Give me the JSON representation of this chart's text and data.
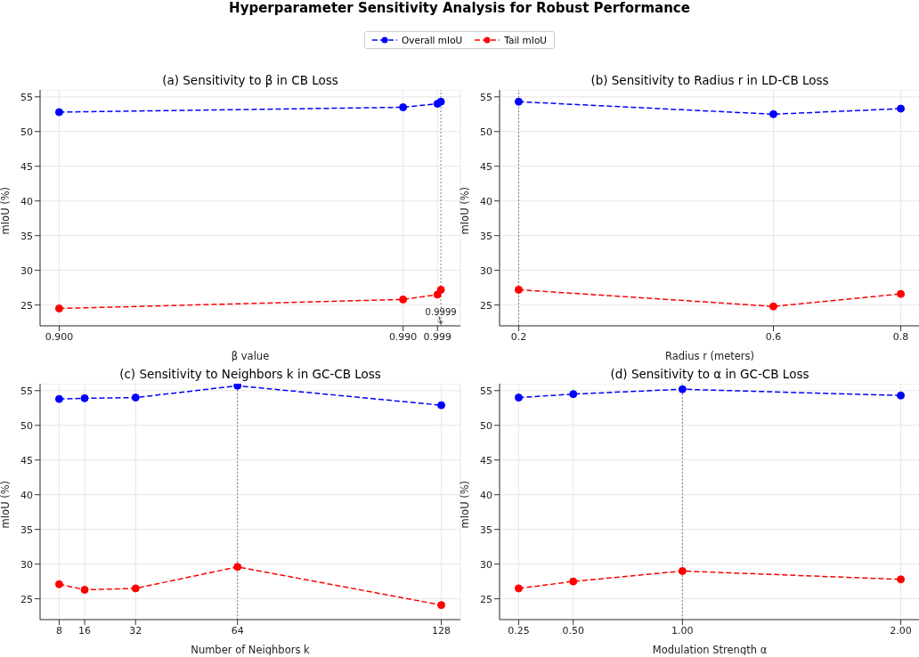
{
  "chart_data": [
    {
      "type": "line",
      "title": "(a) Sensitivity to β in CB Loss",
      "xlabel": "β value",
      "ylabel": "mIoU (%)",
      "x": [
        0.9,
        0.99,
        0.999,
        0.9999
      ],
      "series": [
        {
          "name": "Overall mIoU",
          "color": "#0000ff",
          "values": [
            52.8,
            53.5,
            54.0,
            54.3
          ]
        },
        {
          "name": "Tail mIoU",
          "color": "#ff0000",
          "values": [
            24.5,
            25.8,
            26.5,
            27.2
          ]
        }
      ],
      "xlim": [
        0.895,
        1.005
      ],
      "xticks": [
        {
          "value": 0.9,
          "label": "0.900"
        },
        {
          "value": 0.99,
          "label": "0.990"
        },
        {
          "value": 0.999,
          "label": "0.999"
        }
      ],
      "ylim": [
        22,
        56
      ],
      "yticks": [
        25,
        30,
        35,
        40,
        45,
        50,
        55
      ],
      "ref_lines": [
        {
          "axis": "x",
          "value": 0.9999,
          "color": "#808080",
          "line_style": "dotted"
        }
      ],
      "annotations": [
        "Hyperparameter Sensitivity Analysis for Robust Performance",
        {
          "text": "0.9999",
          "x": 0.9999,
          "y": 22.3
        }
      ],
      "grid": true,
      "legend": "top",
      "marker": "circle",
      "line_style": "dashed"
    },
    {
      "type": "line",
      "title": "(b) Sensitivity to Radius r in LD-CB Loss",
      "xlabel": "Radius r (meters)",
      "ylabel": "mIoU (%)",
      "x": [
        0.2,
        0.6,
        0.8
      ],
      "series": [
        {
          "color": "#0000ff",
          "values": [
            54.3,
            52.5,
            53.3
          ]
        },
        {
          "color": "#ff0000",
          "values": [
            27.2,
            24.8,
            26.6
          ]
        }
      ],
      "xlim": [
        0.17,
        0.83
      ],
      "xticks": [
        0.2,
        0.6,
        0.8
      ],
      "ylim": [
        22,
        56
      ],
      "yticks": [
        25,
        30,
        35,
        40,
        45,
        50,
        55
      ],
      "ref_lines": [
        {
          "axis": "x",
          "value": 0.2,
          "color": "#808080",
          "line_style": "dotted"
        }
      ],
      "grid": true,
      "marker": "circle",
      "line_style": "dashed"
    },
    {
      "type": "line",
      "title": "(c) Sensitivity to Neighbors k in GC-CB Loss",
      "xlabel": "Number of Neighbors k",
      "ylabel": "mIoU (%)",
      "x": [
        8,
        16,
        32,
        64,
        128
      ],
      "series": [
        {
          "color": "#0000ff",
          "values": [
            53.8,
            53.9,
            54.0,
            55.7,
            52.9
          ]
        },
        {
          "color": "#ff0000",
          "values": [
            27.1,
            26.3,
            26.5,
            29.6,
            24.1
          ]
        }
      ],
      "xlim": [
        2,
        134
      ],
      "xticks": [
        8,
        16,
        32,
        64,
        128
      ],
      "ylim": [
        22,
        56
      ],
      "yticks": [
        25,
        30,
        35,
        40,
        45,
        50,
        55
      ],
      "ref_lines": [
        {
          "axis": "x",
          "value": 64,
          "color": "#808080",
          "line_style": "dotted"
        }
      ],
      "grid": true,
      "marker": "circle",
      "line_style": "dashed"
    },
    {
      "type": "line",
      "title": "(d) Sensitivity to α in GC-CB Loss",
      "xlabel": "Modulation Strength α",
      "ylabel": "mIoU (%)",
      "x": [
        0.25,
        0.5,
        1.0,
        2.0
      ],
      "series": [
        {
          "color": "#0000ff",
          "values": [
            54.0,
            54.5,
            55.2,
            54.3
          ]
        },
        {
          "color": "#ff0000",
          "values": [
            26.5,
            27.5,
            29.0,
            27.8
          ]
        }
      ],
      "xlim": [
        0.1625,
        2.0875
      ],
      "xticks": [
        {
          "value": 0.25,
          "label": "0.25"
        },
        {
          "value": 0.5,
          "label": "0.50"
        },
        {
          "value": 1.0,
          "label": "1.00"
        },
        {
          "value": 2.0,
          "label": "2.00"
        }
      ],
      "ylim": [
        22,
        56
      ],
      "yticks": [
        25,
        30,
        35,
        40,
        45,
        50,
        55
      ],
      "ref_lines": [
        {
          "axis": "x",
          "value": 1.0,
          "color": "#808080",
          "line_style": "dotted"
        }
      ],
      "grid": true,
      "marker": "circle",
      "line_style": "dashed"
    }
  ]
}
